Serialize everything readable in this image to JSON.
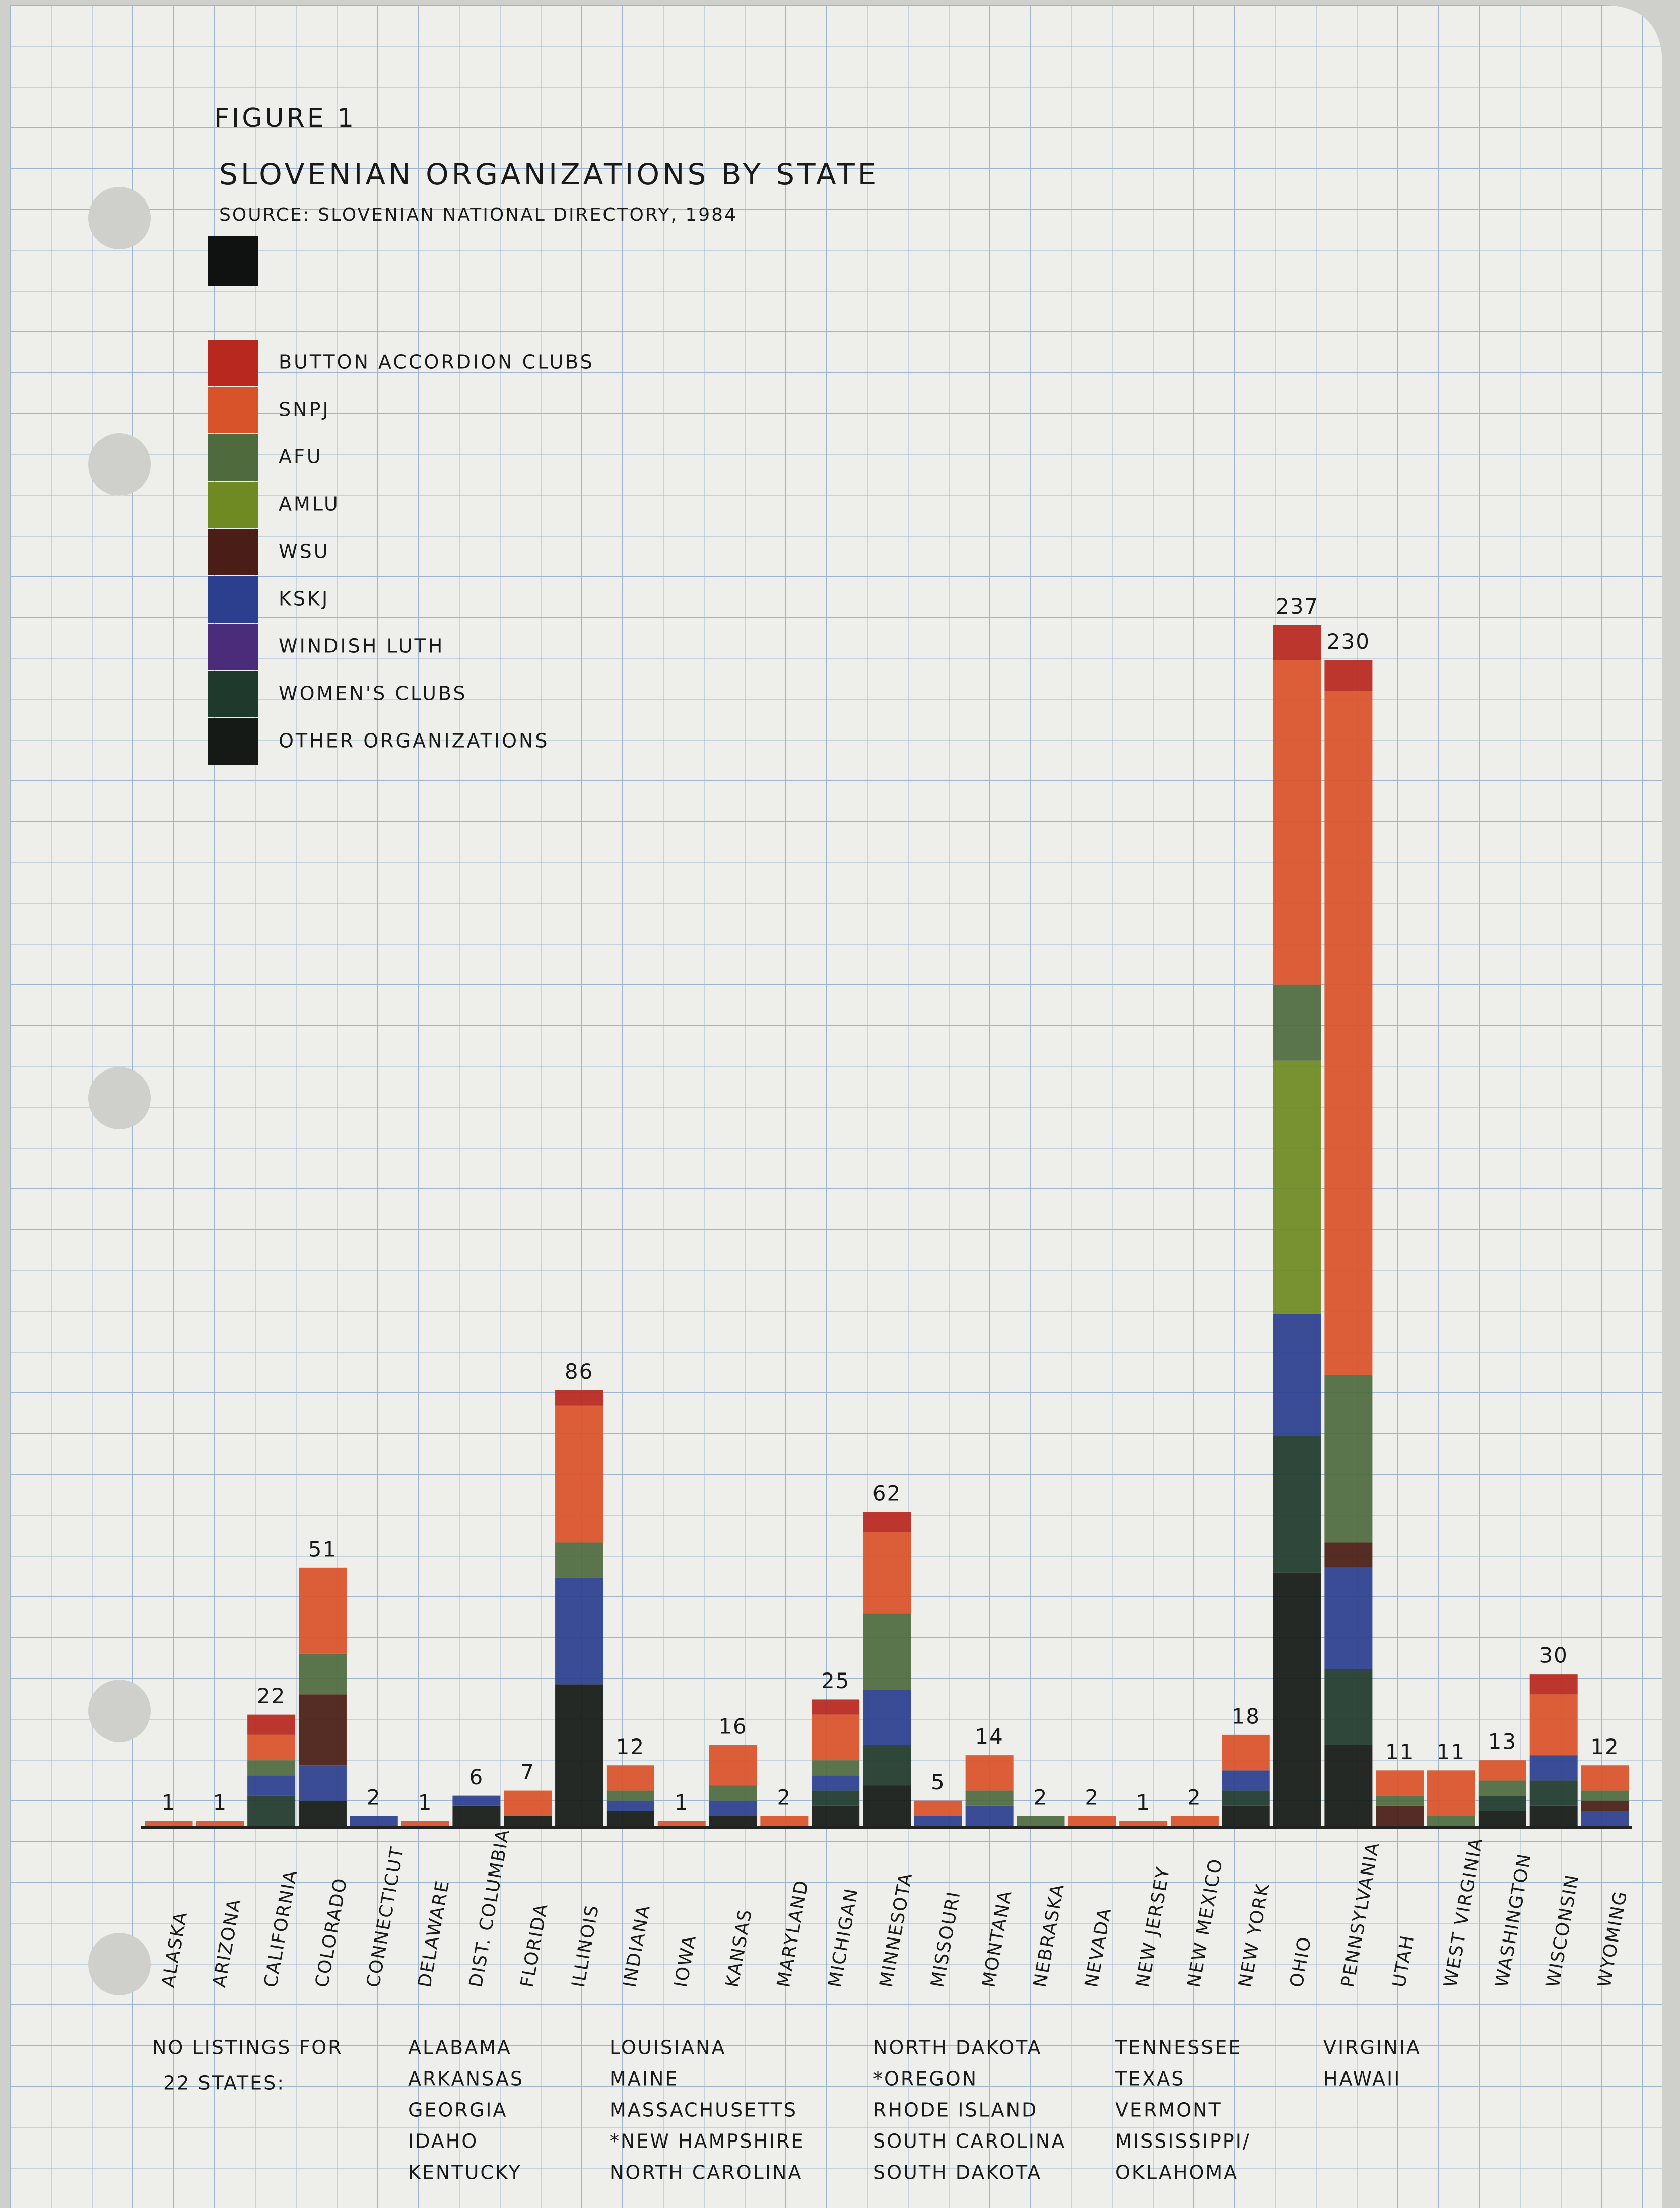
{
  "chart_data": {
    "type": "stacked_bar",
    "figure": "FIGURE 1",
    "title": "SLOVENIAN ORGANIZATIONS BY STATE",
    "source": "SOURCE: SLOVENIAN NATIONAL DIRECTORY, 1984",
    "categories": [
      "ALASKA",
      "ARIZONA",
      "CALIFORNIA",
      "COLORADO",
      "CONNECTICUT",
      "DELAWARE",
      "DIST. COLUMBIA",
      "FLORIDA",
      "ILLINOIS",
      "INDIANA",
      "IOWA",
      "KANSAS",
      "MARYLAND",
      "MICHIGAN",
      "MINNESOTA",
      "MISSOURI",
      "MONTANA",
      "NEBRASKA",
      "NEVADA",
      "NEW JERSEY",
      "NEW MEXICO",
      "NEW YORK",
      "OHIO",
      "PENNSYLVANIA",
      "UTAH",
      "WEST VIRGINIA",
      "WASHINGTON",
      "WISCONSIN",
      "WYOMING"
    ],
    "totals": [
      1,
      1,
      22,
      51,
      2,
      1,
      6,
      7,
      86,
      12,
      1,
      16,
      2,
      25,
      62,
      5,
      14,
      2,
      2,
      1,
      2,
      18,
      237,
      230,
      11,
      11,
      13,
      30,
      12
    ],
    "series": [
      {
        "name": "BUTTON ACCORDION CLUBS",
        "color": "#b8281e",
        "values": [
          0,
          0,
          4,
          0,
          0,
          0,
          0,
          0,
          3,
          0,
          0,
          0,
          0,
          3,
          4,
          0,
          0,
          0,
          0,
          0,
          0,
          0,
          7,
          6,
          0,
          0,
          0,
          4,
          0
        ]
      },
      {
        "name": "SNPJ",
        "color": "#d9532a",
        "values": [
          1,
          1,
          5,
          17,
          0,
          1,
          0,
          5,
          27,
          5,
          1,
          8,
          2,
          9,
          16,
          3,
          7,
          0,
          2,
          1,
          2,
          7,
          64,
          135,
          5,
          9,
          4,
          12,
          5
        ]
      },
      {
        "name": "AFU",
        "color": "#4f6b3e",
        "values": [
          0,
          0,
          3,
          8,
          0,
          0,
          0,
          0,
          7,
          2,
          0,
          3,
          0,
          3,
          15,
          0,
          3,
          2,
          0,
          0,
          0,
          0,
          15,
          33,
          2,
          2,
          3,
          0,
          2
        ]
      },
      {
        "name": "AMLU",
        "color": "#6f8a22",
        "values": [
          0,
          0,
          0,
          0,
          0,
          0,
          0,
          0,
          0,
          0,
          0,
          0,
          0,
          0,
          0,
          0,
          0,
          0,
          0,
          0,
          0,
          0,
          50,
          0,
          0,
          0,
          0,
          0,
          0
        ]
      },
      {
        "name": "WSU",
        "color": "#4a1e16",
        "values": [
          0,
          0,
          0,
          14,
          0,
          0,
          0,
          0,
          0,
          0,
          0,
          0,
          0,
          0,
          0,
          0,
          0,
          0,
          0,
          0,
          0,
          0,
          0,
          5,
          4,
          0,
          0,
          0,
          2
        ]
      },
      {
        "name": "KSKJ",
        "color": "#2c3f8f",
        "values": [
          0,
          0,
          4,
          7,
          2,
          0,
          2,
          0,
          21,
          2,
          0,
          3,
          0,
          3,
          11,
          2,
          4,
          0,
          0,
          0,
          0,
          4,
          24,
          20,
          0,
          0,
          0,
          5,
          3
        ]
      },
      {
        "name": "WINDISH LUTH",
        "color": "#4a2c7a",
        "values": [
          0,
          0,
          0,
          0,
          0,
          0,
          0,
          0,
          0,
          0,
          0,
          0,
          0,
          0,
          0,
          0,
          0,
          0,
          0,
          0,
          0,
          0,
          0,
          0,
          0,
          0,
          0,
          0,
          0
        ]
      },
      {
        "name": "WOMEN'S CLUBS",
        "color": "#1f3a2c",
        "values": [
          0,
          0,
          6,
          0,
          0,
          0,
          0,
          0,
          0,
          0,
          0,
          0,
          0,
          3,
          8,
          0,
          0,
          0,
          0,
          0,
          0,
          3,
          27,
          15,
          0,
          0,
          3,
          5,
          0
        ]
      },
      {
        "name": "OTHER ORGANIZATIONS",
        "color": "#151a17",
        "values": [
          0,
          0,
          0,
          5,
          0,
          0,
          4,
          2,
          28,
          3,
          0,
          2,
          0,
          4,
          8,
          0,
          0,
          0,
          0,
          0,
          0,
          4,
          50,
          16,
          0,
          0,
          3,
          4,
          0
        ]
      }
    ],
    "note": {
      "heading": [
        "NO LISTINGS FOR",
        "22 STATES:"
      ],
      "columns": [
        [
          "ALABAMA",
          "ARKANSAS",
          "GEORGIA",
          "IDAHO",
          "KENTUCKY"
        ],
        [
          "LOUISIANA",
          "MAINE",
          "MASSACHUSETTS",
          "*NEW HAMPSHIRE",
          "NORTH CAROLINA"
        ],
        [
          "NORTH DAKOTA",
          "*OREGON",
          "RHODE ISLAND",
          "SOUTH CAROLINA",
          "SOUTH DAKOTA"
        ],
        [
          "TENNESSEE",
          "TEXAS",
          "VERMONT",
          "MISSISSIPPI/",
          "OKLAHOMA"
        ],
        [
          "VIRGINIA",
          "HAWAII"
        ]
      ]
    }
  }
}
